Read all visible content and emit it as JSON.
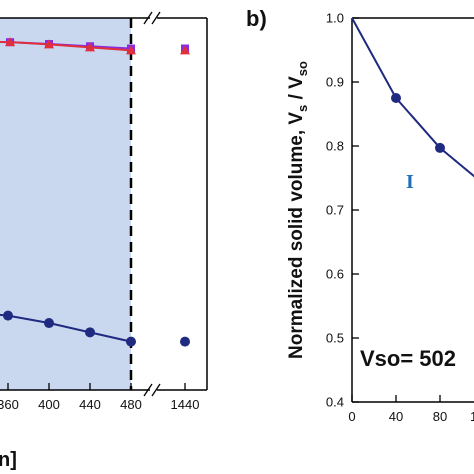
{
  "chart_data": [
    {
      "panel": "a",
      "type": "line",
      "xlabel_visible": "n]",
      "x_ticks": [
        "360",
        "400",
        "440",
        "480",
        "1440"
      ],
      "x_break": true,
      "shaded_region": {
        "x_end": 480,
        "color": "#c9d7ef"
      },
      "dashed_vline_at": 480,
      "series": [
        {
          "marker": "square",
          "color": "#8a2be2",
          "x": [
            362,
            400,
            440,
            480
          ],
          "y_rel": [
            0.935,
            0.93,
            0.924,
            0.918
          ],
          "x_break_point": 1440,
          "y_break_point_rel": 0.918
        },
        {
          "marker": "triangle",
          "color": "#e0303c",
          "x": [
            362,
            400,
            440,
            480
          ],
          "y_rel": [
            0.935,
            0.929,
            0.921,
            0.913
          ],
          "x_break_point": 1440,
          "y_break_point_rel": 0.913
        },
        {
          "marker": "circle",
          "color": "#1f2a80",
          "x": [
            360,
            400,
            440,
            480
          ],
          "y_rel": [
            0.2,
            0.18,
            0.155,
            0.13
          ],
          "x_break_point": 1440,
          "y_break_point_rel": 0.13
        }
      ]
    },
    {
      "panel": "b",
      "panel_label": "b)",
      "type": "line",
      "ylabel": "Normalized solid volume, V",
      "ylabel_sub1": "s",
      "ylabel_mid": " / V",
      "ylabel_sub2": "so",
      "ylim": [
        0.4,
        1.0
      ],
      "y_ticks": [
        "0.4",
        "0.5",
        "0.6",
        "0.7",
        "0.8",
        "0.9",
        "1.0"
      ],
      "x_ticks": [
        "0",
        "40",
        "80",
        "12"
      ],
      "annotation": "I",
      "annotation_color": "#1e6fb8",
      "text_box": "Vso= 502",
      "series": [
        {
          "marker": "circle",
          "color": "#1f2a80",
          "x": [
            0,
            40,
            80,
            120
          ],
          "y": [
            1.0,
            0.875,
            0.797,
            0.74
          ]
        }
      ]
    }
  ]
}
